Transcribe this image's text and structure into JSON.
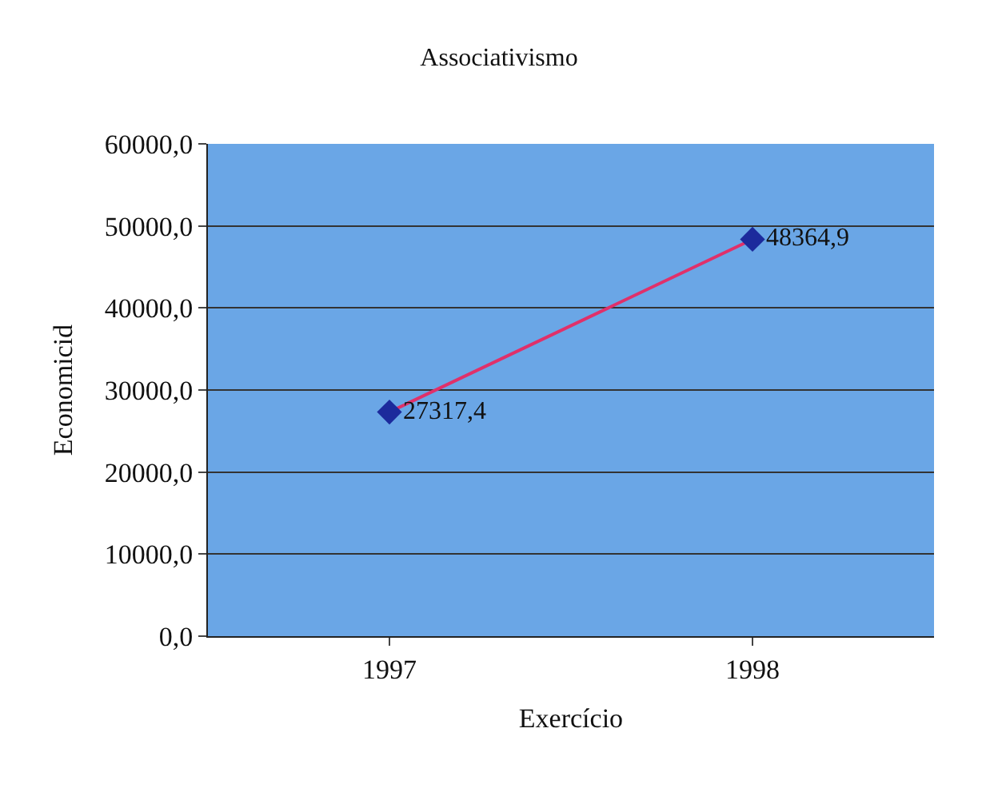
{
  "chart_data": {
    "type": "line",
    "title": "Associativismo",
    "xlabel": "Exercício",
    "ylabel": "Economicid",
    "categories": [
      "1997",
      "1998"
    ],
    "series": [
      {
        "color": "#e0306a",
        "colors": [
          "#1c2a9c",
          "#1c2a9c"
        ],
        "values": [
          27317.4,
          48364.9
        ],
        "value_labels": [
          "27317,4",
          "48364,9"
        ]
      }
    ],
    "ylim": [
      0,
      60000
    ],
    "yticks": [
      {
        "value": 0,
        "label": "0,0"
      },
      {
        "value": 10000,
        "label": "10000,0"
      },
      {
        "value": 20000,
        "label": "20000,0"
      },
      {
        "value": 30000,
        "label": "30000,0"
      },
      {
        "value": 40000,
        "label": "40000,0"
      },
      {
        "value": 50000,
        "label": "50000,0"
      },
      {
        "value": 60000,
        "label": "60000,0"
      }
    ],
    "grid": "y",
    "marker": "diamond",
    "line_style": "solid",
    "legend": false
  }
}
